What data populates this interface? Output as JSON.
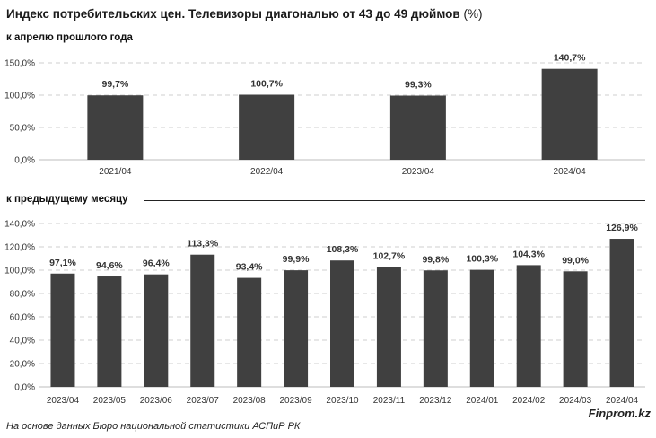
{
  "title": {
    "main": "Индекс потребительских цен. Телевизоры диагональю от 43 до 49 дюймов",
    "unit": "(%)"
  },
  "chart_data": [
    {
      "type": "bar",
      "subtitle": "к апрелю прошлого года",
      "categories": [
        "2021/04",
        "2022/04",
        "2023/04",
        "2024/04"
      ],
      "values": [
        99.7,
        100.7,
        99.3,
        140.7
      ],
      "data_labels": [
        "99,7%",
        "100,7%",
        "99,3%",
        "140,7%"
      ],
      "yticks": [
        "0,0%",
        "50,0%",
        "100,0%",
        "150,0%"
      ],
      "ylim": [
        0,
        150
      ],
      "grid": true,
      "bar_color": "#404040"
    },
    {
      "type": "bar",
      "subtitle": "к предыдущему месяцу",
      "categories": [
        "2023/04",
        "2023/05",
        "2023/06",
        "2023/07",
        "2023/08",
        "2023/09",
        "2023/10",
        "2023/11",
        "2023/12",
        "2024/01",
        "2024/02",
        "2024/03",
        "2024/04"
      ],
      "values": [
        97.1,
        94.6,
        96.4,
        113.3,
        93.4,
        99.9,
        108.3,
        102.7,
        99.8,
        100.3,
        104.3,
        99.0,
        126.9
      ],
      "data_labels": [
        "97,1%",
        "94,6%",
        "96,4%",
        "113,3%",
        "93,4%",
        "99,9%",
        "108,3%",
        "102,7%",
        "99,8%",
        "100,3%",
        "104,3%",
        "99,0%",
        "126,9%"
      ],
      "yticks": [
        "0,0%",
        "20,0%",
        "40,0%",
        "60,0%",
        "80,0%",
        "100,0%",
        "120,0%",
        "140,0%"
      ],
      "ylim": [
        0,
        140
      ],
      "grid": true,
      "bar_color": "#404040"
    }
  ],
  "footer": {
    "source": "На основе данных Бюро национальной статистики АСПиР РК",
    "brand": "Finprom.kz"
  }
}
